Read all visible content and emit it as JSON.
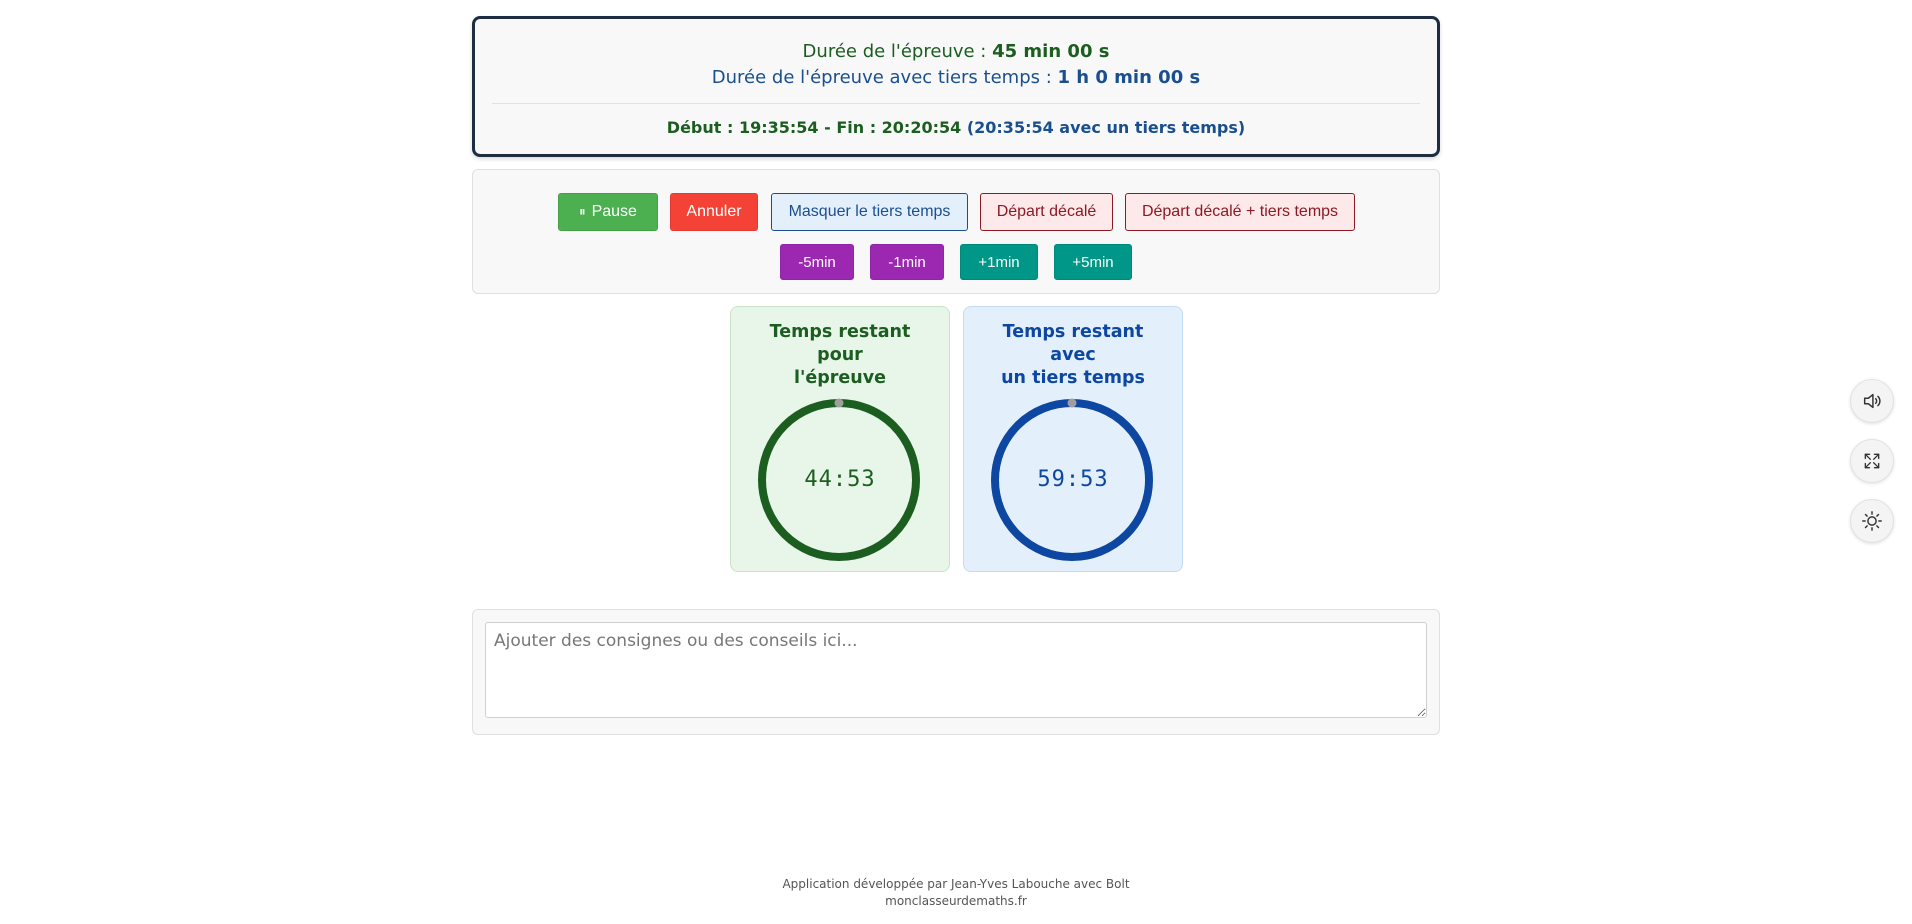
{
  "info": {
    "duration_label": "Durée de l'épreuve : ",
    "duration_value": "45 min 00 s",
    "tiers_label": "Durée de l'épreuve avec tiers temps : ",
    "tiers_value": "1 h 0 min 00 s",
    "times_main": "Début : 19:35:54 - Fin : 20:20:54 ",
    "times_tiers": "(20:35:54 avec un tiers temps)"
  },
  "controls": {
    "pause_icon": "⏸",
    "pause": "Pause",
    "annuler": "Annuler",
    "masquer": "Masquer le tiers temps",
    "depart_decale": "Départ décalé",
    "depart_decale_tiers": "Départ décalé + tiers temps",
    "minus5": "-5min",
    "minus1": "-1min",
    "plus1": "+1min",
    "plus5": "+5min"
  },
  "timers": {
    "normal": {
      "title": "Temps restant\npour\nl'épreuve",
      "time": "44:53",
      "color": "#1b5e20"
    },
    "tiers": {
      "title": "Temps restant\navec\nun tiers temps",
      "time": "59:53",
      "color": "#0d47a1"
    }
  },
  "notes": {
    "placeholder": "Ajouter des consignes ou des conseils ici..."
  },
  "footer": {
    "line1": "Application développée par Jean-Yves Labouche avec Bolt",
    "line2": "monclasseurdemaths.fr"
  },
  "tools": [
    "volume-icon",
    "fullscreen-icon",
    "theme-sun-icon"
  ]
}
